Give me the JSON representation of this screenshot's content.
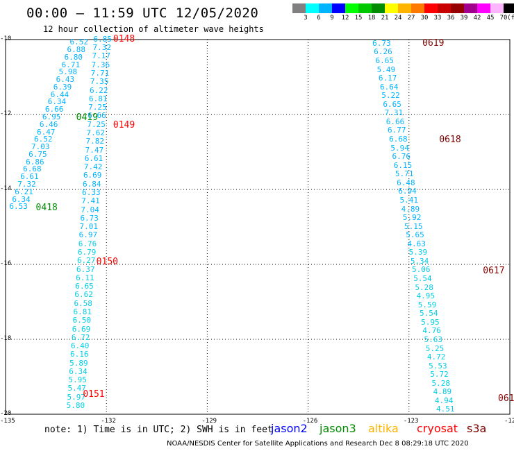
{
  "header": {
    "title": "00:00 – 11:59 UTC 12/05/2020",
    "subtitle": "12 hour collection of altimeter wave heights"
  },
  "colorbar": {
    "colors": [
      "#808080",
      "#00ffff",
      "#00b4ff",
      "#0000ff",
      "#00ff00",
      "#00c800",
      "#008c00",
      "#ffff00",
      "#ffb400",
      "#ff7800",
      "#ff0000",
      "#c80000",
      "#960000",
      "#a0008c",
      "#ff00ff",
      "#ffb4ff",
      "#000000"
    ],
    "labels": [
      "3",
      "6",
      "9",
      "12",
      "15",
      "18",
      "21",
      "24",
      "27",
      "30",
      "33",
      "36",
      "39",
      "42",
      "45",
      "70",
      "(ft)"
    ]
  },
  "axes": {
    "x_labels": [
      "-135",
      "-132",
      "-129",
      "-126",
      "-123",
      "-12"
    ],
    "y_labels": [
      "-10",
      "-12",
      "-14",
      "-16",
      "-18",
      "-20"
    ],
    "lon_range": [
      -135,
      -120
    ],
    "lat_range": [
      -20,
      -10
    ]
  },
  "colors": {
    "swh": "#00b4ff",
    "swh_light": "#00cde6",
    "cryosat": "#ff0000",
    "s3a": "#800000",
    "jason3": "#008c00"
  },
  "map_data": {
    "track_jason3": {
      "labels": [
        {
          "text": "0419",
          "lon": -132.9,
          "lat": -12.07
        },
        {
          "text": "0418",
          "lon": -134.1,
          "lat": -14.48
        }
      ],
      "values": [
        "6.52",
        "6.88",
        "6.80",
        "6.71",
        "5.98",
        "6.43",
        "6.39",
        "6.44",
        "6.34",
        "6.66",
        "6.95",
        "6.46",
        "6.47",
        "6.52",
        "7.03",
        "6.75",
        "6.86",
        "6.68",
        "6.61",
        "7.32",
        "6.21",
        "6.34",
        "6.53"
      ],
      "start": {
        "lon": -132.8,
        "lat": -10.06
      },
      "end": {
        "lon": -134.6,
        "lat": -14.45
      }
    },
    "track_cryosat": {
      "labels": [
        {
          "text": "0148",
          "lon": -131.8,
          "lat": -9.98
        },
        {
          "text": "0149",
          "lon": -131.8,
          "lat": -12.27
        },
        {
          "text": "0150",
          "lon": -132.3,
          "lat": -15.92
        },
        {
          "text": "0151",
          "lon": -132.7,
          "lat": -19.46
        }
      ],
      "values": [
        "6.85",
        "7.32",
        "7.17",
        "7.36",
        "7.71",
        "7.35",
        "6.22",
        "6.81",
        "7.25",
        "6.66",
        "7.25",
        "7.62",
        "7.82",
        "7.47",
        "6.61",
        "7.42",
        "6.69",
        "6.84",
        "6.33",
        "7.41",
        "7.04",
        "6.73",
        "7.01",
        "6.97",
        "6.76",
        "6.79",
        "6.27",
        "6.37",
        "6.11",
        "6.65",
        "6.62",
        "6.58",
        "6.81",
        "6.50",
        "6.69",
        "6.72",
        "6.40",
        "6.16",
        "5.89",
        "6.34",
        "5.95",
        "5.47",
        "5.97",
        "5.80"
      ],
      "start": {
        "lon": -132.1,
        "lat": -9.98
      },
      "end": {
        "lon": -132.9,
        "lat": -19.76
      }
    },
    "track_s3a": {
      "labels": [
        {
          "text": "0619",
          "lon": -122.6,
          "lat": -10.1
        },
        {
          "text": "0618",
          "lon": -122.1,
          "lat": -12.67
        },
        {
          "text": "0617",
          "lon": -120.8,
          "lat": -16.16
        },
        {
          "text": "061",
          "lon": -120.35,
          "lat": -19.58
        }
      ],
      "values": [
        "6.73",
        "6.26",
        "6.65",
        "5.49",
        "6.17",
        "6.64",
        "5.22",
        "6.65",
        "7.31",
        "6.66",
        "6.77",
        "6.68",
        "5.94",
        "6.76",
        "6.15",
        "5.71",
        "6.48",
        "6.94",
        "5.41",
        "4.89",
        "5.92",
        "5.15",
        "5.65",
        "4.63",
        "5.39",
        "5.34",
        "5.06",
        "5.54",
        "5.28",
        "4.95",
        "5.59",
        "5.54",
        "5.95",
        "4.76",
        "5.63",
        "5.25",
        "4.72",
        "5.53",
        "5.72",
        "5.28",
        "4.89",
        "4.94",
        "4.51"
      ],
      "start": {
        "lon": -123.8,
        "lat": -10.09
      },
      "end": {
        "lon": -121.9,
        "lat": -19.86
      }
    }
  },
  "footer": {
    "note": "note:  1) Time is in UTC;  2) SWH is in feet",
    "legend": [
      {
        "name": "jason2",
        "color": "#0000ff"
      },
      {
        "name": "jason3",
        "color": "#008c00"
      },
      {
        "name": "altika",
        "color": "#ffb400"
      },
      {
        "name": "cryosat",
        "color": "#ff0000"
      },
      {
        "name": "s3a",
        "color": "#800000"
      }
    ],
    "credit": "NOAA/NESDIS Center for Satellite Applications and Research     Dec  8 08:29:18 UTC 2020"
  }
}
